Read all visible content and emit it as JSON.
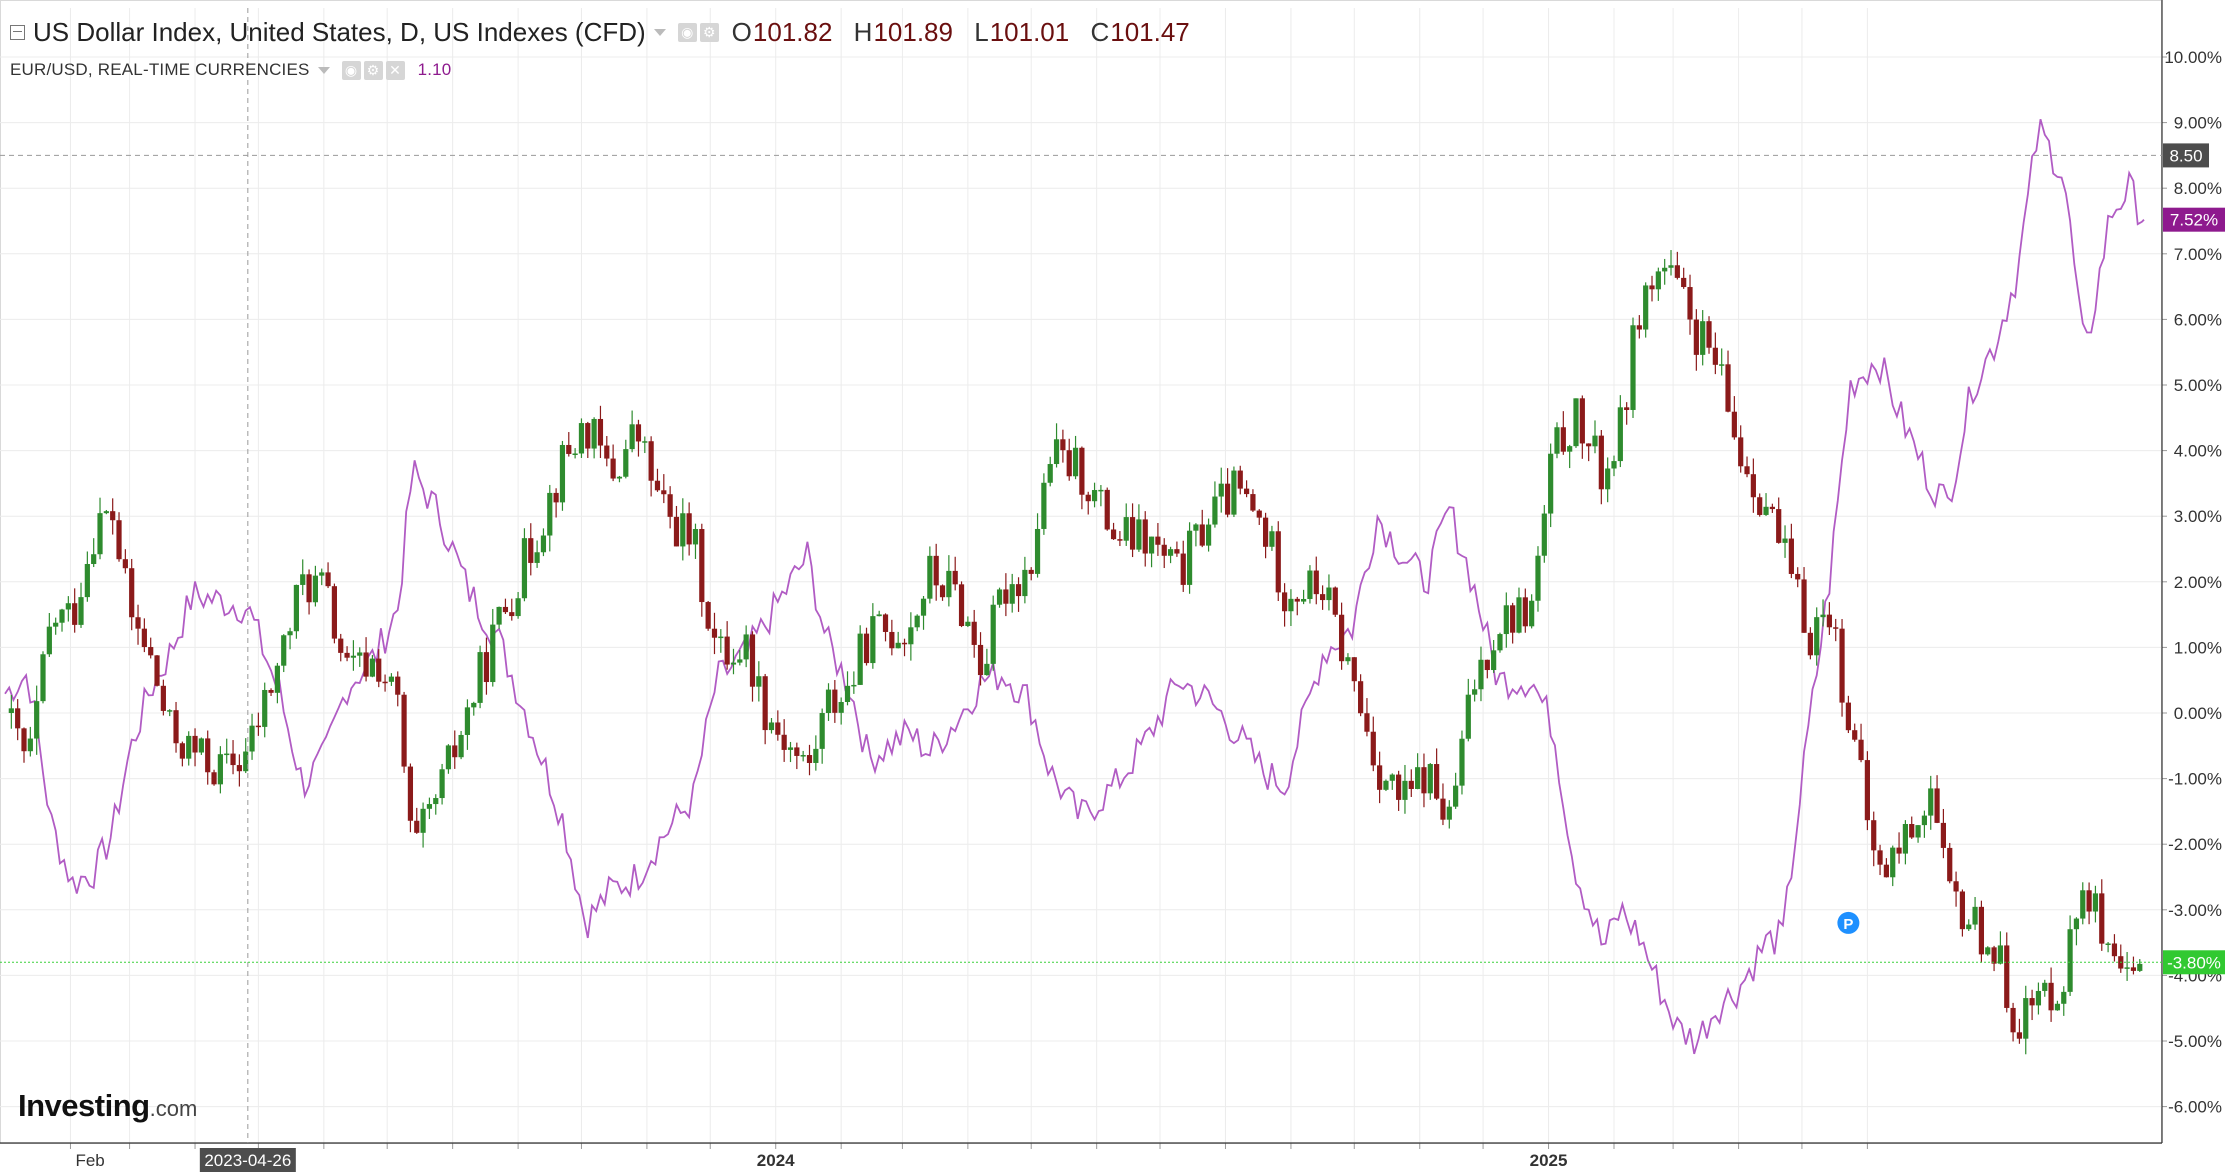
{
  "header": {
    "title": "US Dollar Index, United States, D, US Indexes (CFD)",
    "ohlc": [
      {
        "label": "O",
        "value": "101.82"
      },
      {
        "label": "H",
        "value": "101.89"
      },
      {
        "label": "L",
        "value": "101.01"
      },
      {
        "label": "C",
        "value": "101.47"
      }
    ],
    "compare_symbol": "EUR/USD, REAL-TIME CURRENCIES",
    "compare_value": "1.10"
  },
  "logo": {
    "main": "Investing",
    "suffix": ".com"
  },
  "colors": {
    "up": "#2e8b2e",
    "down": "#8b1a1a",
    "compare_line": "#b15cc4",
    "grid": "#ececec",
    "current_line": "#3bd13b",
    "crosshair": "#9a9a9a",
    "tag_dark": "#4d4d4d",
    "tag_purple": "#8e1a8e",
    "tag_green": "#31c931"
  },
  "chart_data": {
    "type": "line",
    "y_scale": "percent change",
    "ylim": [
      -6.5,
      10.6
    ],
    "y_ticks": [
      "10.00%",
      "9.00%",
      "8.00%",
      "7.00%",
      "6.00%",
      "5.00%",
      "4.00%",
      "3.00%",
      "2.00%",
      "1.00%",
      "0.00%",
      "-1.00%",
      "-2.00%",
      "-3.00%",
      "-4.00%",
      "-5.00%",
      "-6.00%"
    ],
    "y_tick_values": [
      10,
      9,
      8,
      7,
      6,
      5,
      4,
      3,
      2,
      1,
      0,
      -1,
      -2,
      -3,
      -4,
      -5,
      -6
    ],
    "x_labels": [
      {
        "text": "Feb",
        "date": "2023-02-01"
      },
      {
        "text": "2024",
        "date": "2024-01-01"
      },
      {
        "text": "2025",
        "date": "2025-01-01"
      }
    ],
    "month_ticks": [
      "2023-02-01",
      "2023-03-01",
      "2023-04-01",
      "2023-05-01",
      "2023-06-01",
      "2023-07-01",
      "2023-08-01",
      "2023-09-01",
      "2023-10-01",
      "2023-11-01",
      "2023-12-01",
      "2024-01-01",
      "2024-02-01",
      "2024-03-01",
      "2024-04-01",
      "2024-05-01",
      "2024-06-01",
      "2024-07-01",
      "2024-08-01",
      "2024-09-01",
      "2024-10-01",
      "2024-11-01",
      "2024-12-01",
      "2025-01-01",
      "2025-02-01",
      "2025-03-01",
      "2025-04-01",
      "2025-05-01",
      "2025-06-01"
    ],
    "crosshair": {
      "date": "2023-04-26",
      "label": "2023-04-26",
      "value": 8.5,
      "value_label": "8.50"
    },
    "current_levels": [
      {
        "series": "EUR/USD",
        "value": 7.52,
        "label": "7.52%"
      },
      {
        "series": "US Dollar Index",
        "value": -3.8,
        "label": "-3.80%"
      }
    ],
    "marker": {
      "text": "P",
      "date": "2025-05-23",
      "value": -3.2
    },
    "series": [
      {
        "name": "US Dollar Index",
        "kind": "candlestick",
        "close_points": [
          [
            "2023-01-01",
            0.0
          ],
          [
            "2023-01-12",
            -0.8
          ],
          [
            "2023-01-23",
            1.4
          ],
          [
            "2023-02-02",
            1.5
          ],
          [
            "2023-02-13",
            2.9
          ],
          [
            "2023-02-21",
            3.0
          ],
          [
            "2023-03-01",
            1.5
          ],
          [
            "2023-03-10",
            0.9
          ],
          [
            "2023-03-20",
            -0.3
          ],
          [
            "2023-03-31",
            -0.6
          ],
          [
            "2023-04-14",
            -0.9
          ],
          [
            "2023-04-26",
            -0.6
          ],
          [
            "2023-05-11",
            0.8
          ],
          [
            "2023-05-22",
            2.0
          ],
          [
            "2023-06-01",
            1.9
          ],
          [
            "2023-06-12",
            0.6
          ],
          [
            "2023-06-26",
            0.8
          ],
          [
            "2023-07-06",
            0.1
          ],
          [
            "2023-07-13",
            -2.2
          ],
          [
            "2023-07-26",
            -1.2
          ],
          [
            "2023-08-08",
            0.0
          ],
          [
            "2023-08-23",
            1.4
          ],
          [
            "2023-09-08",
            2.6
          ],
          [
            "2023-09-22",
            3.8
          ],
          [
            "2023-10-03",
            4.4
          ],
          [
            "2023-10-15",
            3.6
          ],
          [
            "2023-10-27",
            4.3
          ],
          [
            "2023-11-08",
            3.1
          ],
          [
            "2023-11-23",
            2.6
          ],
          [
            "2023-12-04",
            0.9
          ],
          [
            "2023-12-18",
            1.0
          ],
          [
            "2023-12-28",
            0.0
          ],
          [
            "2024-01-16",
            -0.9
          ],
          [
            "2024-01-25",
            0.1
          ],
          [
            "2024-02-05",
            0.4
          ],
          [
            "2024-02-14",
            1.2
          ],
          [
            "2024-03-04",
            1.3
          ],
          [
            "2024-03-14",
            2.1
          ],
          [
            "2024-03-27",
            1.8
          ],
          [
            "2024-04-08",
            0.7
          ],
          [
            "2024-04-18",
            1.9
          ],
          [
            "2024-04-30",
            2.2
          ],
          [
            "2024-05-10",
            3.9
          ],
          [
            "2024-05-24",
            3.7
          ],
          [
            "2024-06-10",
            2.7
          ],
          [
            "2024-06-25",
            2.6
          ],
          [
            "2024-07-10",
            2.1
          ],
          [
            "2024-07-24",
            3.0
          ],
          [
            "2024-08-06",
            3.4
          ],
          [
            "2024-08-19",
            2.8
          ],
          [
            "2024-08-29",
            1.9
          ],
          [
            "2024-09-16",
            1.9
          ],
          [
            "2024-09-30",
            0.5
          ],
          [
            "2024-10-12",
            -0.8
          ],
          [
            "2024-10-24",
            -1.4
          ],
          [
            "2024-11-04",
            -0.9
          ],
          [
            "2024-11-15",
            -1.7
          ],
          [
            "2024-11-26",
            0.4
          ],
          [
            "2024-12-08",
            1.4
          ],
          [
            "2024-12-24",
            1.6
          ],
          [
            "2025-01-03",
            3.9
          ],
          [
            "2025-01-13",
            4.5
          ],
          [
            "2025-01-27",
            3.6
          ],
          [
            "2025-02-04",
            4.3
          ],
          [
            "2025-02-13",
            6.2
          ],
          [
            "2025-02-24",
            6.8
          ],
          [
            "2025-03-03",
            6.4
          ],
          [
            "2025-03-12",
            5.8
          ],
          [
            "2025-03-21",
            5.3
          ],
          [
            "2025-04-01",
            4.0
          ],
          [
            "2025-04-14",
            3.2
          ],
          [
            "2025-04-22",
            2.4
          ],
          [
            "2025-05-04",
            1.2
          ],
          [
            "2025-05-14",
            1.6
          ],
          [
            "2025-05-24",
            -0.2
          ],
          [
            "2025-06-06",
            -2.5
          ],
          [
            "2025-06-17",
            -2.0
          ],
          [
            "2025-07-01",
            -1.2
          ],
          [
            "2025-07-09",
            -2.8
          ],
          [
            "2025-07-21",
            -3.2
          ],
          [
            "2025-07-31",
            -3.6
          ],
          [
            "2025-08-11",
            -4.7
          ],
          [
            "2025-08-21",
            -4.4
          ],
          [
            "2025-09-02",
            -4.0
          ],
          [
            "2025-09-12",
            -2.4
          ],
          [
            "2025-09-24",
            -4.0
          ],
          [
            "2025-10-03",
            -4.2
          ],
          [
            "2025-10-10",
            -3.8
          ]
        ]
      },
      {
        "name": "EUR/USD",
        "kind": "line",
        "points": [
          [
            "2023-01-01",
            0.3
          ],
          [
            "2023-01-12",
            0.6
          ],
          [
            "2023-01-23",
            -1.7
          ],
          [
            "2023-02-02",
            -2.6
          ],
          [
            "2023-02-13",
            -2.4
          ],
          [
            "2023-02-21",
            -1.8
          ],
          [
            "2023-03-01",
            -0.6
          ],
          [
            "2023-03-10",
            0.3
          ],
          [
            "2023-03-20",
            0.9
          ],
          [
            "2023-03-31",
            1.8
          ],
          [
            "2023-04-14",
            1.7
          ],
          [
            "2023-04-26",
            1.6
          ],
          [
            "2023-05-11",
            0.3
          ],
          [
            "2023-05-22",
            -1.1
          ],
          [
            "2023-06-01",
            -0.7
          ],
          [
            "2023-06-12",
            0.4
          ],
          [
            "2023-06-26",
            0.9
          ],
          [
            "2023-07-06",
            1.6
          ],
          [
            "2023-07-13",
            3.7
          ],
          [
            "2023-07-26",
            3.0
          ],
          [
            "2023-08-08",
            1.9
          ],
          [
            "2023-08-23",
            1.1
          ],
          [
            "2023-09-08",
            -0.3
          ],
          [
            "2023-09-22",
            -1.6
          ],
          [
            "2023-10-03",
            -3.2
          ],
          [
            "2023-10-15",
            -2.7
          ],
          [
            "2023-10-27",
            -2.5
          ],
          [
            "2023-11-08",
            -1.9
          ],
          [
            "2023-11-23",
            -1.3
          ],
          [
            "2023-12-04",
            0.5
          ],
          [
            "2023-12-18",
            0.9
          ],
          [
            "2023-12-28",
            1.4
          ],
          [
            "2024-01-16",
            2.4
          ],
          [
            "2024-01-25",
            1.1
          ],
          [
            "2024-02-05",
            0.4
          ],
          [
            "2024-02-14",
            -0.7
          ],
          [
            "2024-03-04",
            -0.3
          ],
          [
            "2024-03-14",
            -0.6
          ],
          [
            "2024-03-27",
            -0.1
          ],
          [
            "2024-04-08",
            0.5
          ],
          [
            "2024-04-18",
            0.6
          ],
          [
            "2024-04-30",
            0.2
          ],
          [
            "2024-05-10",
            -0.9
          ],
          [
            "2024-05-24",
            -1.6
          ],
          [
            "2024-06-10",
            -1.1
          ],
          [
            "2024-06-25",
            -0.4
          ],
          [
            "2024-07-10",
            0.5
          ],
          [
            "2024-07-24",
            0.2
          ],
          [
            "2024-08-06",
            -0.3
          ],
          [
            "2024-08-19",
            -0.9
          ],
          [
            "2024-08-29",
            -1.1
          ],
          [
            "2024-09-16",
            0.9
          ],
          [
            "2024-09-30",
            1.3
          ],
          [
            "2024-10-12",
            3.0
          ],
          [
            "2024-10-24",
            2.4
          ],
          [
            "2024-11-04",
            2.0
          ],
          [
            "2024-11-15",
            3.1
          ],
          [
            "2024-11-26",
            2.0
          ],
          [
            "2024-12-08",
            0.5
          ],
          [
            "2024-12-24",
            0.5
          ],
          [
            "2025-01-03",
            -0.2
          ],
          [
            "2025-01-13",
            -2.3
          ],
          [
            "2025-01-27",
            -3.6
          ],
          [
            "2025-02-04",
            -3.0
          ],
          [
            "2025-02-13",
            -3.4
          ],
          [
            "2025-02-24",
            -4.3
          ],
          [
            "2025-03-03",
            -4.8
          ],
          [
            "2025-03-12",
            -5.0
          ],
          [
            "2025-03-21",
            -4.5
          ],
          [
            "2025-04-01",
            -4.2
          ],
          [
            "2025-04-14",
            -3.5
          ],
          [
            "2025-04-22",
            -3.4
          ],
          [
            "2025-05-04",
            -0.3
          ],
          [
            "2025-05-14",
            2.0
          ],
          [
            "2025-05-24",
            5.0
          ],
          [
            "2025-06-06",
            5.4
          ],
          [
            "2025-06-17",
            4.5
          ],
          [
            "2025-07-01",
            3.5
          ],
          [
            "2025-07-09",
            3.2
          ],
          [
            "2025-07-21",
            5.0
          ],
          [
            "2025-07-31",
            5.6
          ],
          [
            "2025-08-11",
            6.7
          ],
          [
            "2025-08-21",
            8.9
          ],
          [
            "2025-09-02",
            8.2
          ],
          [
            "2025-09-12",
            5.4
          ],
          [
            "2025-09-24",
            7.6
          ],
          [
            "2025-10-03",
            8.0
          ],
          [
            "2025-10-10",
            7.52
          ]
        ]
      }
    ]
  }
}
